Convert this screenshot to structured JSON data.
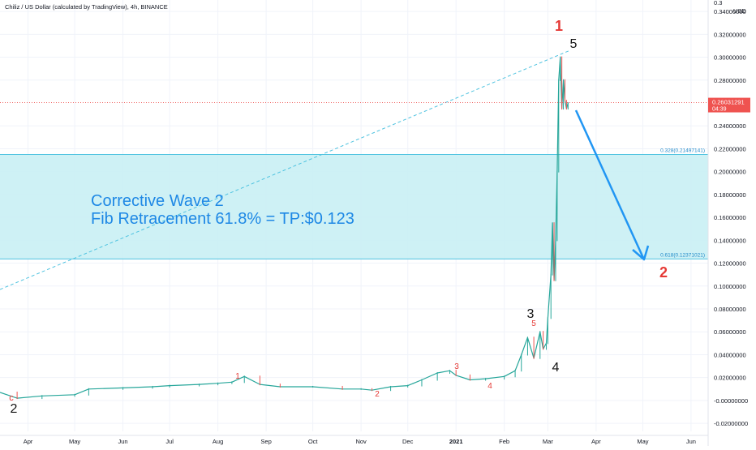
{
  "header": {
    "title": "Chiliz / US Dollar (calculated by TradingView), 4h, BINANCE"
  },
  "chart_data": {
    "type": "line",
    "title": "Chiliz / US Dollar (calculated by TradingView), 4h, BINANCE",
    "currency": "USD",
    "y_scale": "linear",
    "ylim": [
      -0.027,
      0.35
    ],
    "y_ticks": [
      "0.34000000",
      "0.32000000",
      "0.30000000",
      "0.28000000",
      "0.24000000",
      "0.22000000",
      "0.20000000",
      "0.18000000",
      "0.16000000",
      "0.14000000",
      "0.12000000",
      "0.10000000",
      "0.08000000",
      "0.06000000",
      "0.04000000",
      "0.02000000",
      "-0.00000000",
      "-0.02000000"
    ],
    "y_tick_values": [
      0.34,
      0.32,
      0.3,
      0.28,
      0.24,
      0.22,
      0.2,
      0.18,
      0.16,
      0.14,
      0.12,
      0.1,
      0.08,
      0.06,
      0.04,
      0.02,
      0.0,
      -0.02
    ],
    "y_top_tick_partial": "0.3",
    "x_ticks": [
      "Apr",
      "May",
      "Jun",
      "Jul",
      "Aug",
      "Sep",
      "Oct",
      "Nov",
      "Dec",
      "2021",
      "Feb",
      "Mar",
      "Apr",
      "May",
      "Jun"
    ],
    "x_tick_dates": [
      "2020-04-01",
      "2020-05-01",
      "2020-06-01",
      "2020-07-01",
      "2020-08-01",
      "2020-09-01",
      "2020-10-01",
      "2020-11-01",
      "2020-12-01",
      "2021-01-01",
      "2021-02-01",
      "2021-03-01",
      "2021-04-01",
      "2021-05-01",
      "2021-06-01"
    ],
    "series": [
      {
        "color": "#26a69a",
        "x": [
          "2020-03-14",
          "2020-03-25",
          "2020-04-10",
          "2020-05-01",
          "2020-05-10",
          "2020-06-01",
          "2020-06-20",
          "2020-07-01",
          "2020-07-20",
          "2020-08-01",
          "2020-08-10",
          "2020-08-18",
          "2020-08-28",
          "2020-09-10",
          "2020-10-01",
          "2020-10-20",
          "2020-11-01",
          "2020-11-08",
          "2020-11-20",
          "2020-12-01",
          "2020-12-10",
          "2020-12-20",
          "2020-12-28",
          "2021-01-01",
          "2021-01-10",
          "2021-01-20",
          "2021-02-01",
          "2021-02-08",
          "2021-02-12",
          "2021-02-16",
          "2021-02-20",
          "2021-02-24",
          "2021-02-26",
          "2021-02-28",
          "2021-03-01",
          "2021-03-03",
          "2021-03-04",
          "2021-03-05",
          "2021-03-06",
          "2021-03-07",
          "2021-03-08",
          "2021-03-09",
          "2021-03-10",
          "2021-03-11",
          "2021-03-12",
          "2021-03-13",
          "2021-03-14"
        ],
        "y": [
          0.007,
          0.002,
          0.004,
          0.005,
          0.01,
          0.011,
          0.012,
          0.013,
          0.014,
          0.015,
          0.016,
          0.021,
          0.014,
          0.012,
          0.012,
          0.01,
          0.01,
          0.009,
          0.012,
          0.013,
          0.018,
          0.024,
          0.026,
          0.022,
          0.018,
          0.019,
          0.021,
          0.026,
          0.04,
          0.055,
          0.037,
          0.06,
          0.045,
          0.05,
          0.072,
          0.11,
          0.155,
          0.105,
          0.14,
          0.2,
          0.28,
          0.3,
          0.255,
          0.28,
          0.262,
          0.255,
          0.26
        ]
      }
    ],
    "last_price": "0.26031291",
    "last_price_countdown": "04:39",
    "last_price_value": 0.2603,
    "fib_levels": [
      {
        "label": "0.328(0.21497141)",
        "value": 0.21497141
      },
      {
        "label": "0.618(0.12371021)",
        "value": 0.12371021
      }
    ],
    "annotations": {
      "corrective_line1": "Corrective Wave 2",
      "corrective_line2": "Fib Retracement 61.8% = TP:$0.123",
      "major_wave_1": "1",
      "major_wave_2": "2",
      "wave_5": "5",
      "wave_3": "3",
      "wave_4": "4",
      "wave_2": "2",
      "wave_c": "c",
      "minor_1": "1",
      "minor_2": "2",
      "minor_3": "3",
      "minor_4": "4",
      "minor_5": "5"
    },
    "colors": {
      "zone_fill": "#c9eff4",
      "zone_border": "#4fc3e0",
      "trendline": "#4fc3e0",
      "arrow": "#2196f3",
      "corrective_text": "#1e88e5",
      "price_line": "#ef5350",
      "major_label": "#e53935",
      "wave_label": "#111111",
      "minor_label": "#e53935",
      "grid": "#f0f3fa",
      "axis_text": "#131722"
    },
    "grid": true
  }
}
